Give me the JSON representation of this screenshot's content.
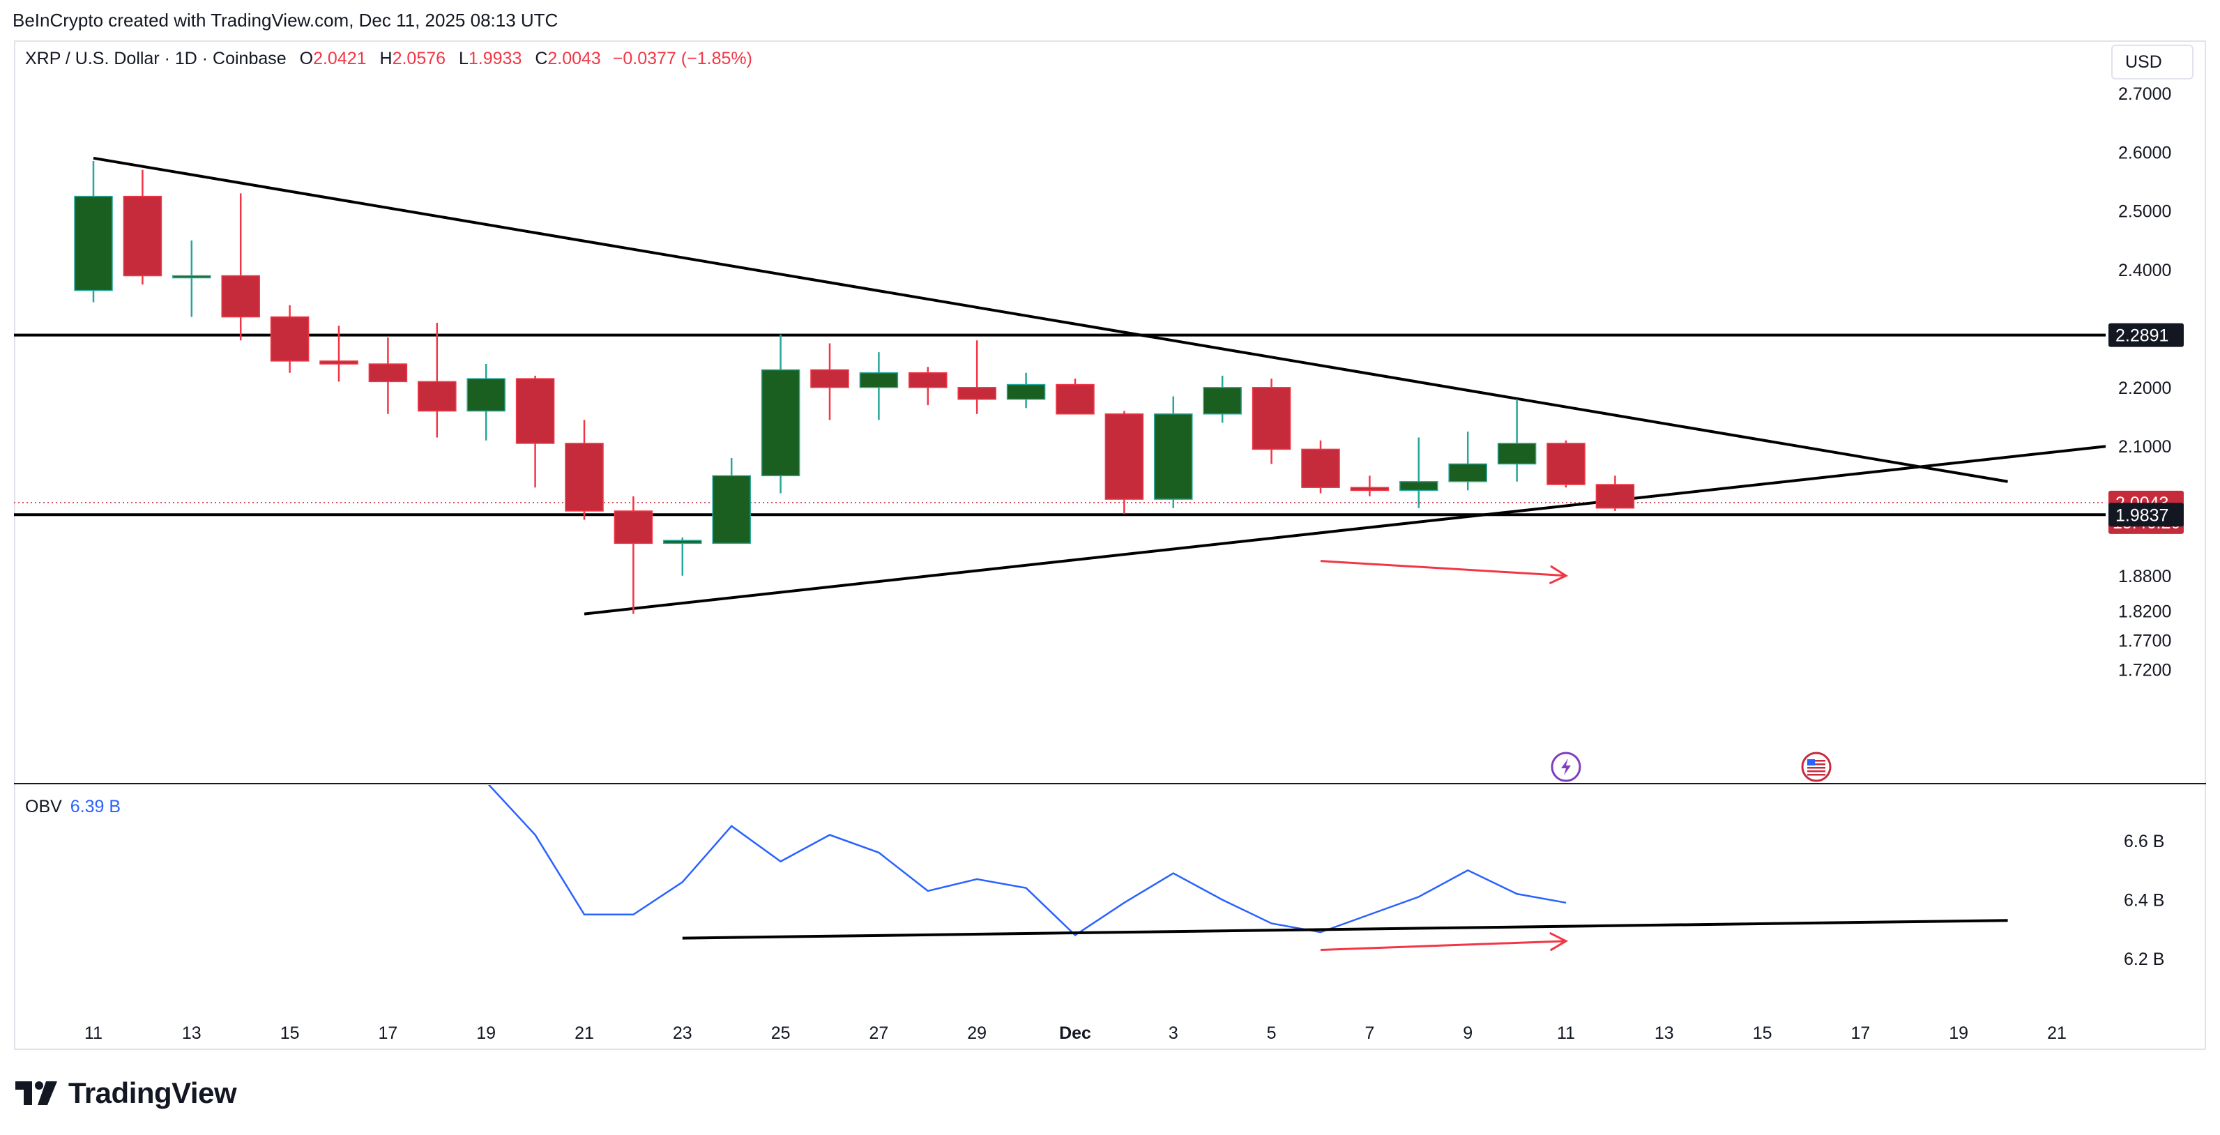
{
  "header": {
    "credit": "BeInCrypto created with TradingView.com, Dec 11, 2025 08:13 UTC"
  },
  "legend": {
    "symbol": "XRP / U.S. Dollar · 1D · Coinbase",
    "o_label": "O",
    "o_value": "2.0421",
    "h_label": "H",
    "h_value": "2.0576",
    "l_label": "L",
    "l_value": "1.9933",
    "c_label": "C",
    "c_value": "2.0043",
    "change": "−0.0377 (−1.85%)"
  },
  "currency": "USD",
  "obv_legend": {
    "label": "OBV",
    "value": "6.39 B"
  },
  "brand": {
    "name": "TradingView"
  },
  "colors": {
    "up": "#1a5e20",
    "down": "#c62b3b",
    "wick_up": "#26a69a",
    "wick_down": "#f23645",
    "obv": "#2962ff",
    "arrow": "#f23645"
  },
  "chart_data": [
    {
      "type": "candlestick",
      "x_tick_labels": [
        "11",
        "13",
        "15",
        "17",
        "19",
        "21",
        "23",
        "25",
        "27",
        "29",
        "Dec",
        "3",
        "5",
        "7",
        "9",
        "11",
        "13",
        "15",
        "17",
        "19",
        "21"
      ],
      "x_tick_days": [
        0,
        2,
        4,
        6,
        8,
        10,
        12,
        14,
        16,
        18,
        20,
        22,
        24,
        26,
        28,
        30,
        32,
        34,
        36,
        38,
        40
      ],
      "y_ticks": [
        "2.7000",
        "2.6000",
        "2.5000",
        "2.4000",
        "2.2000",
        "2.1000",
        "1.8800",
        "1.8200",
        "1.7700",
        "1.7200"
      ],
      "y_tick_values": [
        2.7,
        2.6,
        2.5,
        2.4,
        2.2,
        2.1,
        1.88,
        1.82,
        1.77,
        1.72
      ],
      "price_tags": [
        {
          "value": 2.2891,
          "label": "2.2891",
          "color": "#131722"
        },
        {
          "value": 2.0043,
          "label": "2.0043",
          "sub": "15:46:20",
          "color": "#c62b3b"
        },
        {
          "value": 1.9837,
          "label": "1.9837",
          "color": "#131722"
        }
      ],
      "candles": [
        {
          "o": 2.365,
          "h": 2.585,
          "l": 2.345,
          "c": 2.525
        },
        {
          "o": 2.525,
          "h": 2.57,
          "l": 2.375,
          "c": 2.39
        },
        {
          "o": 2.39,
          "h": 2.45,
          "l": 2.32,
          "c": 2.39
        },
        {
          "o": 2.39,
          "h": 2.53,
          "l": 2.28,
          "c": 2.32
        },
        {
          "o": 2.32,
          "h": 2.34,
          "l": 2.225,
          "c": 2.245
        },
        {
          "o": 2.245,
          "h": 2.305,
          "l": 2.21,
          "c": 2.24
        },
        {
          "o": 2.24,
          "h": 2.285,
          "l": 2.155,
          "c": 2.21
        },
        {
          "o": 2.21,
          "h": 2.31,
          "l": 2.115,
          "c": 2.16
        },
        {
          "o": 2.16,
          "h": 2.24,
          "l": 2.11,
          "c": 2.215
        },
        {
          "o": 2.215,
          "h": 2.22,
          "l": 2.03,
          "c": 2.105
        },
        {
          "o": 2.105,
          "h": 2.145,
          "l": 1.975,
          "c": 1.99
        },
        {
          "o": 1.99,
          "h": 2.015,
          "l": 1.815,
          "c": 1.935
        },
        {
          "o": 1.935,
          "h": 1.945,
          "l": 1.88,
          "c": 1.94
        },
        {
          "o": 1.935,
          "h": 2.08,
          "l": 1.935,
          "c": 2.05
        },
        {
          "o": 2.05,
          "h": 2.29,
          "l": 2.02,
          "c": 2.23
        },
        {
          "o": 2.23,
          "h": 2.275,
          "l": 2.145,
          "c": 2.2
        },
        {
          "o": 2.2,
          "h": 2.26,
          "l": 2.145,
          "c": 2.225
        },
        {
          "o": 2.225,
          "h": 2.235,
          "l": 2.17,
          "c": 2.2
        },
        {
          "o": 2.2,
          "h": 2.28,
          "l": 2.155,
          "c": 2.18
        },
        {
          "o": 2.18,
          "h": 2.225,
          "l": 2.165,
          "c": 2.205
        },
        {
          "o": 2.205,
          "h": 2.215,
          "l": 2.155,
          "c": 2.155
        },
        {
          "o": 2.155,
          "h": 2.16,
          "l": 1.985,
          "c": 2.01
        },
        {
          "o": 2.01,
          "h": 2.185,
          "l": 1.995,
          "c": 2.155
        },
        {
          "o": 2.155,
          "h": 2.22,
          "l": 2.14,
          "c": 2.2
        },
        {
          "o": 2.2,
          "h": 2.215,
          "l": 2.07,
          "c": 2.095
        },
        {
          "o": 2.095,
          "h": 2.11,
          "l": 2.02,
          "c": 2.03
        },
        {
          "o": 2.03,
          "h": 2.05,
          "l": 2.015,
          "c": 2.025
        },
        {
          "o": 2.025,
          "h": 2.115,
          "l": 1.995,
          "c": 2.04
        },
        {
          "o": 2.04,
          "h": 2.125,
          "l": 2.025,
          "c": 2.07
        },
        {
          "o": 2.07,
          "h": 2.18,
          "l": 2.04,
          "c": 2.105
        },
        {
          "o": 2.105,
          "h": 2.11,
          "l": 2.03,
          "c": 2.035
        },
        {
          "o": 2.035,
          "h": 2.05,
          "l": 1.99,
          "c": 1.995
        }
      ],
      "trendlines": [
        {
          "from": [
            0,
            2.59
          ],
          "to": [
            39,
            2.04
          ]
        },
        {
          "from": [
            10,
            1.815
          ],
          "to": [
            41,
            2.1
          ]
        },
        {
          "from": [
            -2,
            2.2891
          ],
          "to": [
            42,
            2.2891
          ]
        },
        {
          "from": [
            -2,
            1.9837
          ],
          "to": [
            42,
            1.9837
          ]
        }
      ],
      "arrow": {
        "from": [
          25,
          1.905
        ],
        "to": [
          30,
          1.88
        ]
      }
    },
    {
      "type": "line",
      "name": "OBV",
      "y_ticks": [
        "6.6 B",
        "6.4 B",
        "6.2 B"
      ],
      "y_tick_values": [
        6.6,
        6.4,
        6.2
      ],
      "x": [
        8,
        9,
        10,
        11,
        12,
        13,
        14,
        15,
        16,
        17,
        18,
        19,
        20,
        21,
        22,
        23,
        24,
        25,
        26,
        27,
        28,
        29,
        30
      ],
      "values": [
        6.8,
        6.62,
        6.35,
        6.35,
        6.46,
        6.65,
        6.53,
        6.62,
        6.56,
        6.43,
        6.47,
        6.44,
        6.28,
        6.39,
        6.49,
        6.4,
        6.32,
        6.29,
        6.35,
        6.41,
        6.5,
        6.42,
        6.39
      ],
      "support": {
        "from": [
          12,
          6.27
        ],
        "to": [
          39,
          6.33
        ]
      },
      "arrow": {
        "from": [
          25,
          6.23
        ],
        "to": [
          30,
          6.26
        ]
      }
    }
  ]
}
